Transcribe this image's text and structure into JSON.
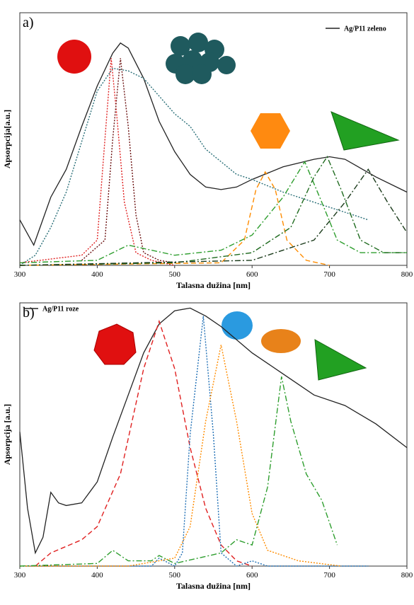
{
  "chart_data": [
    {
      "type": "line",
      "label": "a)",
      "x_label": "Talasna dužina [nm]",
      "y_label": "Apsorpcija[a.u.]",
      "xlim": [
        300,
        800
      ],
      "xticks": [
        300,
        400,
        500,
        600,
        700,
        800
      ],
      "ylim": [
        0,
        1
      ],
      "legend": "upper right",
      "series": [
        {
          "name": "Ag/P11 zeleno",
          "color": "#222222",
          "dash": "solid",
          "x": [
            300,
            318,
            340,
            360,
            380,
            400,
            420,
            430,
            440,
            460,
            480,
            500,
            520,
            540,
            560,
            580,
            600,
            640,
            680,
            700,
            720,
            760,
            800
          ],
          "values": [
            0.18,
            0.08,
            0.27,
            0.38,
            0.55,
            0.71,
            0.84,
            0.88,
            0.86,
            0.74,
            0.57,
            0.45,
            0.36,
            0.31,
            0.3,
            0.31,
            0.34,
            0.39,
            0.42,
            0.43,
            0.42,
            0.35,
            0.29
          ]
        },
        {
          "color": "#2a6f78",
          "dash": "dotted",
          "x": [
            300,
            320,
            340,
            360,
            380,
            400,
            420,
            440,
            460,
            480,
            500,
            520,
            540,
            560,
            580,
            600,
            640,
            680,
            720,
            750
          ],
          "values": [
            0,
            0.04,
            0.15,
            0.29,
            0.49,
            0.69,
            0.78,
            0.77,
            0.74,
            0.67,
            0.6,
            0.55,
            0.46,
            0.41,
            0.36,
            0.34,
            0.29,
            0.25,
            0.21,
            0.18
          ]
        },
        {
          "color": "#e02020",
          "dash": "dotted",
          "x": [
            300,
            380,
            400,
            410,
            418,
            425,
            435,
            450,
            470,
            500
          ],
          "values": [
            0.01,
            0.04,
            0.1,
            0.5,
            0.82,
            0.6,
            0.25,
            0.05,
            0.02,
            0
          ]
        },
        {
          "color": "#6b1010",
          "dash": "dotted",
          "x": [
            380,
            410,
            420,
            430,
            440,
            450,
            460,
            480,
            500
          ],
          "values": [
            0.02,
            0.1,
            0.5,
            0.82,
            0.55,
            0.2,
            0.05,
            0.02,
            0.01
          ]
        },
        {
          "color": "#ff8c00",
          "dash": "dashed",
          "x": [
            300,
            560,
            590,
            605,
            617,
            630,
            645,
            670,
            700
          ],
          "values": [
            0,
            0.01,
            0.1,
            0.3,
            0.37,
            0.3,
            0.1,
            0.02,
            0
          ]
        },
        {
          "color": "#2e9e2e",
          "dash": "dashdot",
          "x": [
            300,
            400,
            440,
            500,
            560,
            600,
            640,
            668,
            690,
            710,
            740,
            800
          ],
          "values": [
            0.01,
            0.02,
            0.08,
            0.04,
            0.06,
            0.12,
            0.27,
            0.41,
            0.25,
            0.1,
            0.05,
            0.05
          ]
        },
        {
          "color": "#1f6b1f",
          "dash": "dashdot",
          "x": [
            300,
            500,
            600,
            650,
            680,
            697,
            715,
            740,
            770,
            800
          ],
          "values": [
            0,
            0.01,
            0.05,
            0.15,
            0.35,
            0.43,
            0.3,
            0.1,
            0.05,
            0.05
          ]
        },
        {
          "color": "#1a3a1a",
          "dash": "dashdot",
          "x": [
            300,
            600,
            680,
            720,
            750,
            775,
            800
          ],
          "values": [
            0,
            0.02,
            0.1,
            0.25,
            0.38,
            0.25,
            0.13
          ]
        }
      ]
    },
    {
      "type": "line",
      "label": "b)",
      "x_label": "Talasna dužina [nm]",
      "y_label": "Apsorpcija [a.u.]",
      "xlim": [
        300,
        800
      ],
      "xticks": [
        300,
        400,
        500,
        600,
        700,
        800
      ],
      "ylim": [
        0,
        1
      ],
      "legend": "upper left",
      "series": [
        {
          "name": "Ag/P11 roze",
          "color": "#222222",
          "dash": "solid",
          "x": [
            300,
            310,
            320,
            330,
            340,
            350,
            360,
            380,
            400,
            420,
            440,
            460,
            480,
            500,
            520,
            540,
            560,
            600,
            640,
            680,
            720,
            760,
            800
          ],
          "values": [
            0.51,
            0.22,
            0.05,
            0.11,
            0.28,
            0.24,
            0.23,
            0.24,
            0.32,
            0.49,
            0.65,
            0.81,
            0.92,
            0.97,
            0.98,
            0.95,
            0.91,
            0.81,
            0.73,
            0.65,
            0.61,
            0.54,
            0.45
          ]
        },
        {
          "color": "#e02020",
          "dash": "dashed",
          "x": [
            320,
            340,
            380,
            400,
            430,
            460,
            480,
            500,
            520,
            540,
            560,
            580,
            600
          ],
          "values": [
            0,
            0.05,
            0.1,
            0.15,
            0.35,
            0.75,
            0.93,
            0.75,
            0.45,
            0.22,
            0.08,
            0.02,
            0
          ]
        },
        {
          "color": "#1f6fb5",
          "dash": "dotted",
          "x": [
            300,
            470,
            480,
            500,
            510,
            520,
            537,
            550,
            560,
            580,
            600,
            620,
            750
          ],
          "values": [
            0,
            0,
            0.03,
            0,
            0.05,
            0.5,
            0.95,
            0.5,
            0.05,
            0,
            0.02,
            0,
            0
          ]
        },
        {
          "color": "#ff8c00",
          "dash": "dotted",
          "x": [
            300,
            440,
            500,
            520,
            540,
            560,
            580,
            600,
            620,
            660,
            715
          ],
          "values": [
            0,
            0,
            0.03,
            0.15,
            0.55,
            0.84,
            0.55,
            0.2,
            0.06,
            0.02,
            0
          ]
        },
        {
          "color": "#2e9e2e",
          "dash": "dashdot",
          "x": [
            300,
            400,
            420,
            440,
            470,
            480,
            500,
            560,
            580,
            600,
            620,
            638,
            650,
            670,
            690,
            710
          ],
          "values": [
            0,
            0.01,
            0.06,
            0.02,
            0.02,
            0.04,
            0.01,
            0.05,
            0.1,
            0.08,
            0.3,
            0.72,
            0.55,
            0.35,
            0.25,
            0.08
          ]
        }
      ]
    }
  ]
}
